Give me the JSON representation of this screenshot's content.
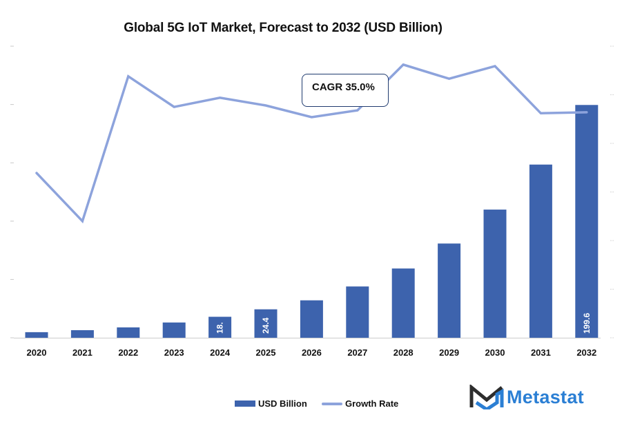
{
  "chart_data": {
    "type": "bar",
    "title": "Global 5G IoT Market, Forecast to 2032 (USD Billion)",
    "xlabel": "",
    "ylabel": "",
    "categories": [
      "2020",
      "2021",
      "2022",
      "2023",
      "2024",
      "2025",
      "2026",
      "2027",
      "2028",
      "2029",
      "2030",
      "2031",
      "2032"
    ],
    "series": [
      {
        "name": "USD Billion",
        "type": "bar",
        "axis": "left",
        "color": "#3d63ad",
        "values": [
          4.8,
          6.5,
          8.9,
          13.1,
          18.0,
          24.4,
          32.1,
          44.0,
          59.4,
          80.8,
          109.9,
          148.5,
          199.6
        ],
        "data_labels": [
          "",
          "",
          "",
          "",
          "18.",
          "24.4",
          "",
          "",
          "",
          "",
          "",
          "",
          "199.6"
        ]
      },
      {
        "name": "Growth Rate",
        "type": "line",
        "axis": "right",
        "color": "#8da3dc",
        "values": [
          33.9,
          24.0,
          53.8,
          47.5,
          49.4,
          47.8,
          45.4,
          46.8,
          56.2,
          53.3,
          55.9,
          46.2,
          46.4
        ]
      }
    ],
    "ylim": [
      0,
      250
    ],
    "y2lim": [
      0,
      60
    ],
    "y_tick_count": 6,
    "y2_tick_count": 7,
    "tick_labels_visible": false,
    "grid": false,
    "legend": {
      "position": "bottom",
      "entries": [
        "USD Billion",
        "Growth Rate"
      ]
    },
    "annotations": [
      {
        "text": "CAGR 35.0%",
        "type": "callout-box"
      }
    ]
  },
  "legend": {
    "bar_label": "USD Billion",
    "line_label": "Growth Rate"
  },
  "annotation": {
    "cagr": "CAGR 35.0%"
  },
  "brand": {
    "name": "Metastat",
    "color": "#2b7fd4",
    "mark_color": "#2d2d2d"
  }
}
